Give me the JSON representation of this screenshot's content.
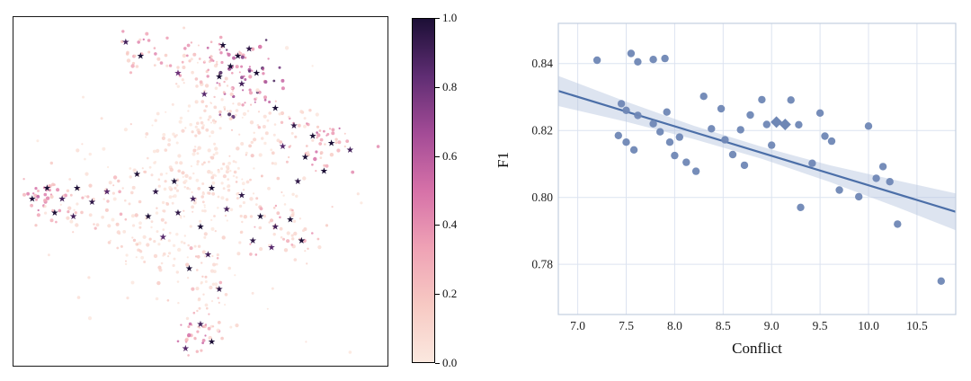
{
  "figure": {
    "background": "#ffffff",
    "panels": [
      "embedding-scatter-with-colorbar",
      "regression-scatter"
    ]
  },
  "chart_data": [
    {
      "type": "scatter",
      "title": "",
      "xlabel": "",
      "ylabel": "",
      "axes_visible": false,
      "border": "#1a1a1a",
      "colorbar": {
        "min": 0.0,
        "max": 1.0,
        "ticks": [
          0.0,
          0.2,
          0.4,
          0.6,
          0.8,
          1.0
        ],
        "tick_labels": [
          "0.0",
          "0.2",
          "0.4",
          "0.6",
          "0.8",
          "1.0"
        ],
        "colormap_stops": [
          "#fbe8df",
          "#f7c9c3",
          "#efa2b5",
          "#d671a8",
          "#a34b96",
          "#5f2d73",
          "#1c0f36"
        ]
      },
      "clusters": [
        {
          "cx": 0.5,
          "cy": 0.13,
          "sx": 0.06,
          "sy": 0.05,
          "n": 55,
          "v_min": 0.05,
          "v_max": 0.45
        },
        {
          "cx": 0.62,
          "cy": 0.16,
          "sx": 0.05,
          "sy": 0.05,
          "n": 60,
          "v_min": 0.35,
          "v_max": 0.95
        },
        {
          "cx": 0.33,
          "cy": 0.09,
          "sx": 0.035,
          "sy": 0.03,
          "n": 22,
          "v_min": 0.1,
          "v_max": 0.5
        },
        {
          "cx": 0.55,
          "cy": 0.25,
          "sx": 0.05,
          "sy": 0.04,
          "n": 35,
          "v_min": 0.02,
          "v_max": 0.25
        },
        {
          "cx": 0.82,
          "cy": 0.37,
          "sx": 0.05,
          "sy": 0.04,
          "n": 45,
          "v_min": 0.15,
          "v_max": 0.6
        },
        {
          "cx": 0.7,
          "cy": 0.33,
          "sx": 0.05,
          "sy": 0.05,
          "n": 35,
          "v_min": 0.02,
          "v_max": 0.3
        },
        {
          "cx": 0.08,
          "cy": 0.52,
          "sx": 0.035,
          "sy": 0.035,
          "n": 35,
          "v_min": 0.2,
          "v_max": 0.6
        },
        {
          "cx": 0.2,
          "cy": 0.53,
          "sx": 0.06,
          "sy": 0.045,
          "n": 45,
          "v_min": 0.02,
          "v_max": 0.35
        },
        {
          "cx": 0.45,
          "cy": 0.5,
          "sx": 0.1,
          "sy": 0.09,
          "n": 130,
          "v_min": 0.0,
          "v_max": 0.15
        },
        {
          "cx": 0.6,
          "cy": 0.47,
          "sx": 0.07,
          "sy": 0.06,
          "n": 60,
          "v_min": 0.0,
          "v_max": 0.2
        },
        {
          "cx": 0.72,
          "cy": 0.61,
          "sx": 0.055,
          "sy": 0.045,
          "n": 45,
          "v_min": 0.05,
          "v_max": 0.4
        },
        {
          "cx": 0.35,
          "cy": 0.65,
          "sx": 0.06,
          "sy": 0.05,
          "n": 45,
          "v_min": 0.0,
          "v_max": 0.2
        },
        {
          "cx": 0.51,
          "cy": 0.78,
          "sx": 0.045,
          "sy": 0.07,
          "n": 50,
          "v_min": 0.02,
          "v_max": 0.3
        },
        {
          "cx": 0.49,
          "cy": 0.91,
          "sx": 0.035,
          "sy": 0.035,
          "n": 30,
          "v_min": 0.15,
          "v_max": 0.55
        },
        {
          "cx": 0.47,
          "cy": 0.33,
          "sx": 0.05,
          "sy": 0.06,
          "n": 40,
          "v_min": 0.0,
          "v_max": 0.15
        },
        {
          "cx": 0.5,
          "cy": 0.5,
          "sx": 0.22,
          "sy": 0.2,
          "n": 80,
          "v_min": 0.0,
          "v_max": 0.08
        }
      ],
      "star_points": [
        [
          0.56,
          0.08,
          1.0
        ],
        [
          0.6,
          0.11,
          1.0
        ],
        [
          0.63,
          0.09,
          0.95
        ],
        [
          0.58,
          0.14,
          1.0
        ],
        [
          0.65,
          0.16,
          1.0
        ],
        [
          0.61,
          0.19,
          0.9
        ],
        [
          0.55,
          0.17,
          1.0
        ],
        [
          0.51,
          0.22,
          0.85
        ],
        [
          0.3,
          0.07,
          0.9
        ],
        [
          0.34,
          0.11,
          1.0
        ],
        [
          0.44,
          0.16,
          0.8
        ],
        [
          0.7,
          0.26,
          1.0
        ],
        [
          0.75,
          0.31,
          0.95
        ],
        [
          0.8,
          0.34,
          1.0
        ],
        [
          0.85,
          0.36,
          1.0
        ],
        [
          0.9,
          0.38,
          0.9
        ],
        [
          0.78,
          0.4,
          1.0
        ],
        [
          0.72,
          0.37,
          0.85
        ],
        [
          0.83,
          0.44,
          1.0
        ],
        [
          0.76,
          0.47,
          0.95
        ],
        [
          0.05,
          0.52,
          1.0
        ],
        [
          0.09,
          0.49,
          1.0
        ],
        [
          0.13,
          0.52,
          0.9
        ],
        [
          0.17,
          0.49,
          1.0
        ],
        [
          0.21,
          0.53,
          0.95
        ],
        [
          0.11,
          0.56,
          1.0
        ],
        [
          0.25,
          0.5,
          0.85
        ],
        [
          0.16,
          0.57,
          0.9
        ],
        [
          0.33,
          0.45,
          1.0
        ],
        [
          0.38,
          0.5,
          0.95
        ],
        [
          0.43,
          0.47,
          1.0
        ],
        [
          0.48,
          0.52,
          0.9
        ],
        [
          0.53,
          0.49,
          1.0
        ],
        [
          0.44,
          0.56,
          0.95
        ],
        [
          0.36,
          0.57,
          1.0
        ],
        [
          0.57,
          0.55,
          0.9
        ],
        [
          0.5,
          0.6,
          1.0
        ],
        [
          0.4,
          0.63,
          0.85
        ],
        [
          0.61,
          0.51,
          0.95
        ],
        [
          0.66,
          0.57,
          1.0
        ],
        [
          0.7,
          0.6,
          0.9
        ],
        [
          0.74,
          0.58,
          1.0
        ],
        [
          0.64,
          0.64,
          0.95
        ],
        [
          0.69,
          0.66,
          0.85
        ],
        [
          0.77,
          0.64,
          1.0
        ],
        [
          0.52,
          0.68,
          0.9
        ],
        [
          0.47,
          0.72,
          1.0
        ],
        [
          0.55,
          0.78,
          0.95
        ],
        [
          0.5,
          0.88,
          0.9
        ],
        [
          0.53,
          0.93,
          1.0
        ],
        [
          0.46,
          0.95,
          0.85
        ]
      ]
    },
    {
      "type": "scatter",
      "title": "",
      "xlabel": "Conflict",
      "ylabel": "F1",
      "xlim": [
        6.8,
        10.9
      ],
      "ylim": [
        0.765,
        0.852
      ],
      "grid": true,
      "xticks": [
        7.0,
        7.5,
        8.0,
        8.5,
        9.0,
        9.5,
        10.0,
        10.5
      ],
      "xtick_labels": [
        "7.0",
        "7.5",
        "8.0",
        "8.5",
        "9.0",
        "9.5",
        "10.0",
        "10.5"
      ],
      "yticks": [
        0.78,
        0.8,
        0.82,
        0.84
      ],
      "ytick_labels": [
        "0.78",
        "0.80",
        "0.82",
        "0.84"
      ],
      "points": [
        [
          7.2,
          0.841
        ],
        [
          7.55,
          0.843
        ],
        [
          7.62,
          0.8405
        ],
        [
          7.78,
          0.8412
        ],
        [
          7.9,
          0.8415
        ],
        [
          7.45,
          0.828
        ],
        [
          7.5,
          0.826
        ],
        [
          7.62,
          0.8245
        ],
        [
          7.42,
          0.8185
        ],
        [
          7.5,
          0.8165
        ],
        [
          7.58,
          0.8142
        ],
        [
          7.78,
          0.822
        ],
        [
          7.85,
          0.8196
        ],
        [
          7.92,
          0.8255
        ],
        [
          7.95,
          0.8165
        ],
        [
          8.0,
          0.8125
        ],
        [
          8.05,
          0.818
        ],
        [
          8.12,
          0.8105
        ],
        [
          8.22,
          0.8078
        ],
        [
          8.3,
          0.8302
        ],
        [
          8.38,
          0.8205
        ],
        [
          8.48,
          0.8265
        ],
        [
          8.52,
          0.8172
        ],
        [
          8.6,
          0.8128
        ],
        [
          8.68,
          0.8202
        ],
        [
          8.72,
          0.8096
        ],
        [
          8.78,
          0.8246
        ],
        [
          8.9,
          0.8292
        ],
        [
          8.95,
          0.8218
        ],
        [
          9.0,
          0.8156
        ],
        [
          9.2,
          0.8291
        ],
        [
          9.28,
          0.8217
        ],
        [
          9.3,
          0.797
        ],
        [
          9.42,
          0.8102
        ],
        [
          9.5,
          0.8252
        ],
        [
          9.55,
          0.8183
        ],
        [
          9.62,
          0.8168
        ],
        [
          9.7,
          0.8022
        ],
        [
          9.9,
          0.8002
        ],
        [
          10.0,
          0.8213
        ],
        [
          10.08,
          0.8057
        ],
        [
          10.15,
          0.8092
        ],
        [
          10.22,
          0.8047
        ],
        [
          10.3,
          0.792
        ],
        [
          10.75,
          0.775
        ]
      ],
      "highlight_points": {
        "marker": "diamond",
        "points": [
          [
            9.05,
            0.8225
          ],
          [
            9.14,
            0.8218
          ]
        ]
      },
      "regression_line": {
        "x": [
          6.8,
          10.9
        ],
        "y": [
          0.8318,
          0.7957
        ]
      },
      "confidence_band": {
        "x": [
          6.8,
          7.5,
          8.2,
          8.9,
          9.6,
          10.3,
          10.9
        ],
        "upper": [
          0.8363,
          0.8286,
          0.8214,
          0.8151,
          0.8096,
          0.805,
          0.8012
        ],
        "lower": [
          0.8273,
          0.8226,
          0.8174,
          0.8115,
          0.8046,
          0.797,
          0.7902
        ]
      },
      "colors": {
        "point": "#6f87b5",
        "line": "#4c6fa8",
        "band": "#b3c4dd",
        "grid": "#dce3f0",
        "spine": "#c3cedf",
        "tick_text": "#222222"
      }
    }
  ]
}
